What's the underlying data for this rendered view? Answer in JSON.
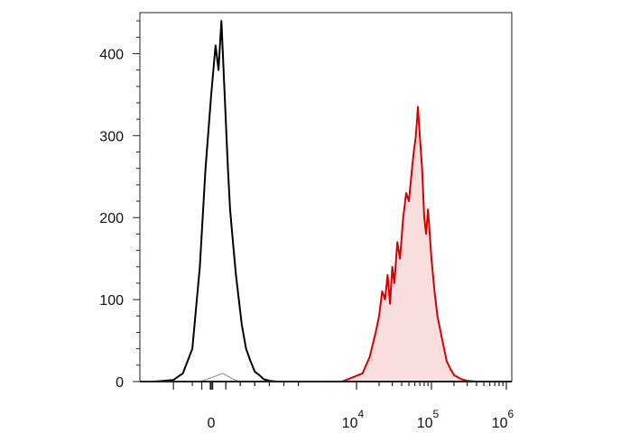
{
  "chart_data": {
    "type": "area",
    "title": "",
    "xlabel": "",
    "ylabel": "",
    "xscale": "biexponential",
    "ylim": [
      0,
      450
    ],
    "yticks": [
      {
        "value": 0,
        "label": "0"
      },
      {
        "value": 100,
        "label": "100"
      },
      {
        "value": 200,
        "label": "200"
      },
      {
        "value": 300,
        "label": "300"
      },
      {
        "value": 400,
        "label": "400"
      }
    ],
    "xticks": [
      {
        "value": 0,
        "base": "0",
        "exp": ""
      },
      {
        "value": 10000,
        "base": "10",
        "exp": "4"
      },
      {
        "value": 100000,
        "base": "10",
        "exp": "5"
      },
      {
        "value": 1000000,
        "base": "10",
        "exp": "6"
      }
    ],
    "grid": false,
    "legend": "none",
    "series": [
      {
        "color": "#000000",
        "fill": "none",
        "x": [
          -3000,
          -2000,
          -1500,
          -1000,
          -600,
          -300,
          0,
          300,
          500,
          700,
          900,
          1000,
          1150,
          1300,
          1500,
          1700,
          1900,
          2100,
          2400,
          2700,
          3000,
          3300,
          3600,
          4000,
          4500,
          5000,
          6000
        ],
        "y": [
          0,
          2,
          10,
          40,
          140,
          260,
          350,
          410,
          380,
          440,
          360,
          320,
          260,
          210,
          170,
          130,
          100,
          70,
          40,
          25,
          12,
          8,
          3,
          1,
          0,
          0,
          0
        ]
      },
      {
        "color": "#999999",
        "fill": "none",
        "x": [
          -600,
          -200,
          200,
          500,
          800,
          1100,
          1500,
          2000
        ],
        "y": [
          0,
          3,
          6,
          8,
          10,
          7,
          3,
          0
        ]
      },
      {
        "color": "#d80000",
        "fill": "#f9dede",
        "x": [
          9000,
          12000,
          15000,
          18000,
          20000,
          22000,
          24000,
          26000,
          28000,
          30000,
          32000,
          35000,
          38000,
          42000,
          46000,
          50000,
          55000,
          58000,
          62000,
          66000,
          70000,
          75000,
          80000,
          85000,
          90000,
          100000,
          110000,
          120000,
          140000,
          160000,
          180000,
          200000,
          250000,
          300000,
          400000
        ],
        "y": [
          0,
          10,
          30,
          60,
          80,
          110,
          100,
          130,
          95,
          140,
          120,
          170,
          150,
          200,
          230,
          220,
          260,
          280,
          300,
          335,
          300,
          260,
          200,
          180,
          210,
          150,
          110,
          80,
          50,
          25,
          15,
          8,
          3,
          1,
          0
        ]
      }
    ]
  }
}
